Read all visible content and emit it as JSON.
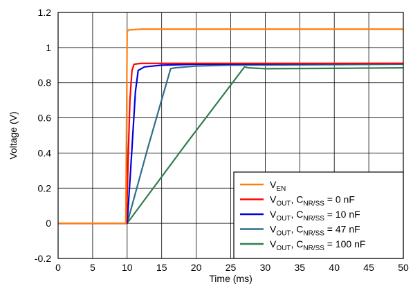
{
  "chart_data": {
    "type": "line",
    "xlabel": "Time (ms)",
    "ylabel": "Voltage (V)",
    "xlim": [
      0,
      50
    ],
    "ylim": [
      -0.2,
      1.2
    ],
    "xticks": [
      0,
      5,
      10,
      15,
      20,
      25,
      30,
      35,
      40,
      45,
      50
    ],
    "yticks": [
      -0.2,
      0,
      0.2,
      0.4,
      0.6,
      0.8,
      1,
      1.2
    ],
    "xtick_labels": [
      "0",
      "5",
      "10",
      "15",
      "20",
      "25",
      "30",
      "35",
      "40",
      "45",
      "50"
    ],
    "ytick_labels": [
      "-0.2",
      "0",
      "0.2",
      "0.4",
      "0.6",
      "0.8",
      "1",
      "1.2"
    ],
    "grid": true,
    "legend_position": "bottom-right",
    "series": [
      {
        "name": "V_EN",
        "label_main": "V",
        "label_sub": "EN",
        "label_suffix": "",
        "color": "#ff7f0e",
        "x": [
          0,
          9.8,
          9.9,
          10.0,
          10.2,
          12,
          50
        ],
        "y": [
          0,
          0,
          0.5,
          1.09,
          1.1,
          1.105,
          1.105
        ]
      },
      {
        "name": "V_OUT, C_NR/SS = 0 nF",
        "label_main": "V",
        "label_sub": "OUT",
        "label_suffix": ", C",
        "label_sub2": "NR/SS",
        "label_tail": " = 0 nF",
        "color": "#ff0000",
        "x": [
          0,
          9.9,
          10.1,
          10.4,
          10.7,
          11,
          12,
          20,
          50
        ],
        "y": [
          0,
          0,
          0.3,
          0.7,
          0.87,
          0.905,
          0.91,
          0.91,
          0.91
        ],
        "label_main_text": "V"
      },
      {
        "name": "V_OUT, C_NR/SS = 10 nF",
        "label_main": "V",
        "label_sub": "OUT",
        "label_suffix": ", C",
        "label_sub2": "NR/SS",
        "label_tail": " = 10 nF",
        "color": "#0000dd",
        "x": [
          0,
          10.0,
          10.5,
          11.2,
          11.6,
          12.5,
          15,
          20,
          50
        ],
        "y": [
          0,
          0,
          0.3,
          0.75,
          0.87,
          0.89,
          0.9,
          0.905,
          0.91
        ]
      },
      {
        "name": "V_OUT, C_NR/SS = 47 nF",
        "label_main": "V",
        "label_sub": "OUT",
        "label_suffix": ", C",
        "label_sub2": "NR/SS",
        "label_tail": " = 47 nF",
        "color": "#2e6e88",
        "x": [
          0,
          10.0,
          13.0,
          16.3,
          17,
          20,
          25,
          50
        ],
        "y": [
          0,
          0,
          0.43,
          0.88,
          0.885,
          0.895,
          0.9,
          0.905
        ]
      },
      {
        "name": "V_OUT, C_NR/SS = 100 nF",
        "label_main": "V",
        "label_sub": "OUT",
        "label_suffix": ", C",
        "label_sub2": "NR/SS",
        "label_tail": " = 100 nF",
        "color": "#2f7d4e",
        "x": [
          0,
          10.0,
          18.5,
          27.0,
          27.5,
          30,
          40,
          50
        ],
        "y": [
          0,
          0,
          0.45,
          0.89,
          0.885,
          0.88,
          0.882,
          0.885
        ]
      }
    ]
  }
}
